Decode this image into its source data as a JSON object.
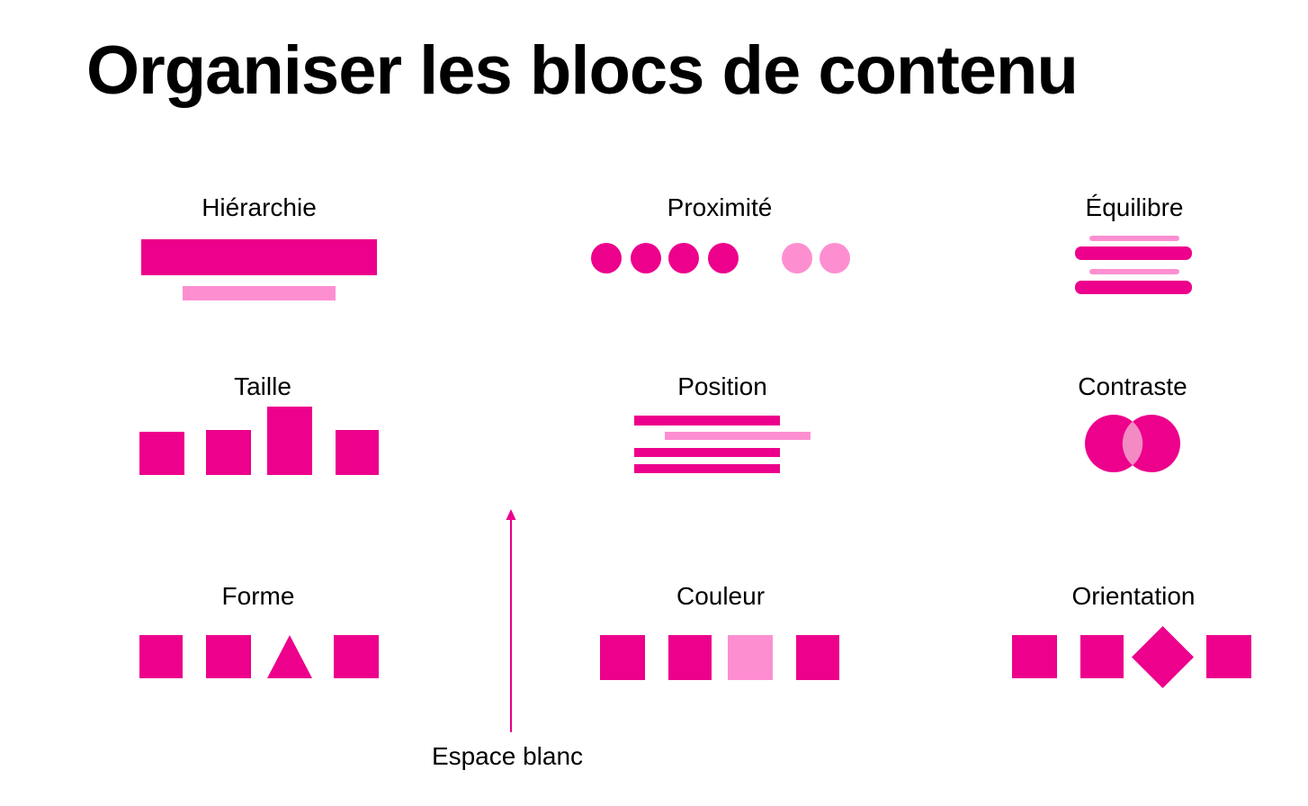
{
  "title": "Organiser les blocs de contenu",
  "colors": {
    "primary": "#ec008c",
    "light": "#fd8fd1",
    "overlap": "#f48ac4"
  },
  "blocks": {
    "hierarchie": "Hiérarchie",
    "proximite": "Proximité",
    "equilibre": "Équilibre",
    "taille": "Taille",
    "position": "Position",
    "contraste": "Contraste",
    "forme": "Forme",
    "couleur": "Couleur",
    "orientation": "Orientation"
  },
  "whitespace": {
    "label": "Espace blanc",
    "icon": "arrow-up-icon"
  }
}
